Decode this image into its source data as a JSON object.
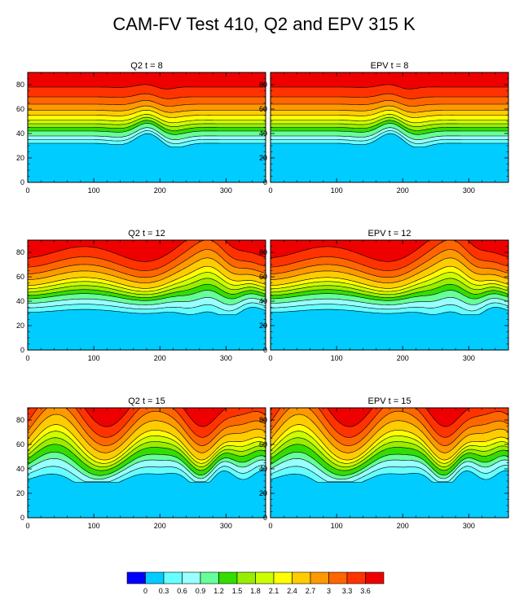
{
  "title": "CAM-FV Test 410, Q2 and EPV 315 K",
  "panel_order": [
    "Q2 t = 8",
    "EPV t = 8",
    "Q2 t = 12",
    "EPV t = 12",
    "Q2 t = 15",
    "EPV t = 15"
  ],
  "colorbar": {
    "levels": [
      "0",
      "0.3",
      "0.6",
      "0.9",
      "1.2",
      "1.5",
      "1.8",
      "2.1",
      "2.4",
      "2.7",
      "3",
      "3.3",
      "3.6"
    ],
    "colors": [
      "#0000ff",
      "#00ccff",
      "#66ffff",
      "#99ffff",
      "#66ff99",
      "#33dd00",
      "#99ee00",
      "#ccff00",
      "#ffff00",
      "#ffcc00",
      "#ff9900",
      "#ff6600",
      "#ff3300",
      "#ee0000"
    ]
  },
  "chart_data": [
    {
      "type": "heatmap",
      "title": "Q2 t = 8",
      "xlim": [
        0,
        360
      ],
      "ylim": [
        0,
        90
      ],
      "xticks": [
        "0",
        "100",
        "200",
        "300"
      ],
      "yticks": [
        "0",
        "20",
        "40",
        "60",
        "80"
      ]
    },
    {
      "type": "heatmap",
      "title": "EPV t = 8",
      "xlim": [
        0,
        360
      ],
      "ylim": [
        0,
        90
      ],
      "xticks": [
        "0",
        "100",
        "200",
        "300"
      ],
      "yticks": [
        "0",
        "20",
        "40",
        "60",
        "80"
      ]
    },
    {
      "type": "heatmap",
      "title": "Q2 t = 12",
      "xlim": [
        0,
        360
      ],
      "ylim": [
        0,
        90
      ],
      "xticks": [
        "0",
        "100",
        "200",
        "300"
      ],
      "yticks": [
        "0",
        "20",
        "40",
        "60",
        "80"
      ]
    },
    {
      "type": "heatmap",
      "title": "EPV t = 12",
      "xlim": [
        0,
        360
      ],
      "ylim": [
        0,
        90
      ],
      "xticks": [
        "0",
        "100",
        "200",
        "300"
      ],
      "yticks": [
        "0",
        "20",
        "40",
        "60",
        "80"
      ]
    },
    {
      "type": "heatmap",
      "title": "Q2 t = 15",
      "xlim": [
        0,
        360
      ],
      "ylim": [
        0,
        90
      ],
      "xticks": [
        "0",
        "100",
        "200",
        "300"
      ],
      "yticks": [
        "0",
        "20",
        "40",
        "60",
        "80"
      ]
    },
    {
      "type": "heatmap",
      "title": "EPV t = 15",
      "xlim": [
        0,
        360
      ],
      "ylim": [
        0,
        90
      ],
      "xticks": [
        "0",
        "100",
        "200",
        "300"
      ],
      "yticks": [
        "0",
        "20",
        "40",
        "60",
        "80"
      ]
    }
  ]
}
